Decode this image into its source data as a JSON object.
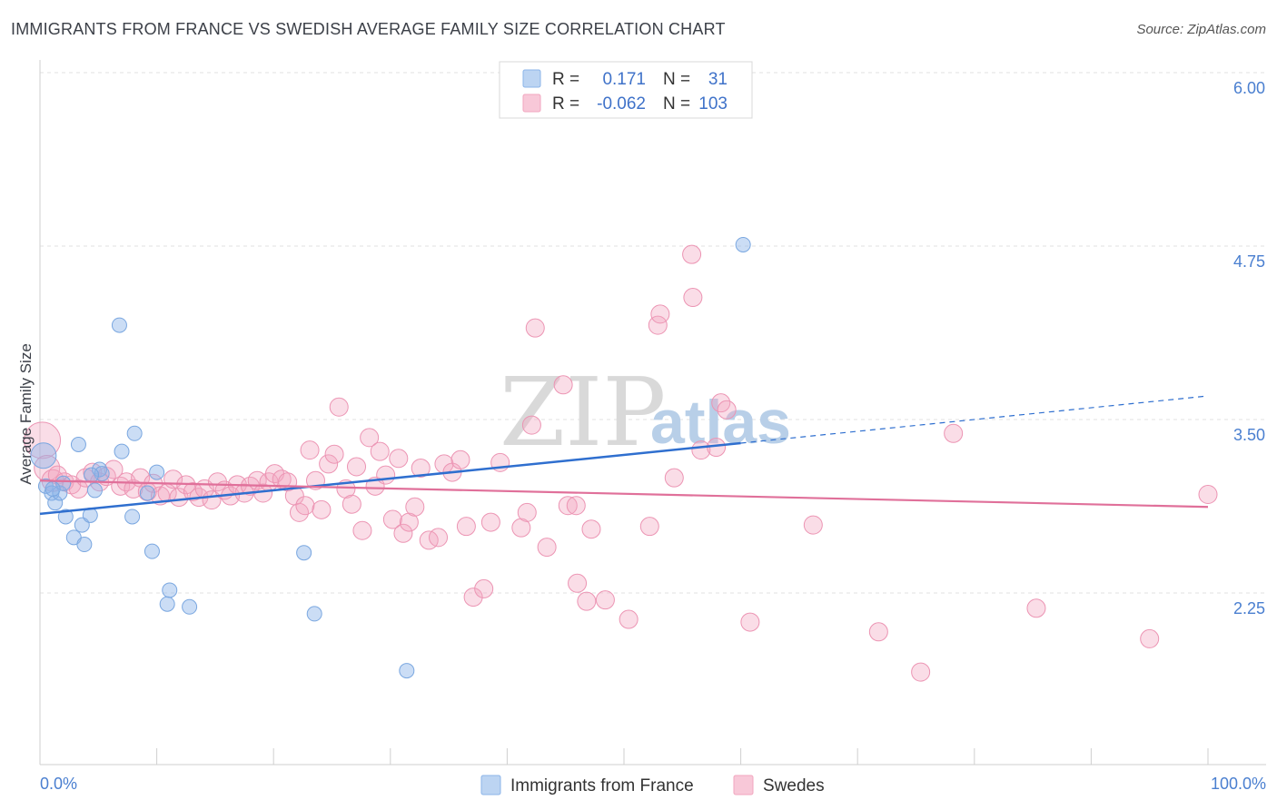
{
  "header": {
    "title": "IMMIGRANTS FROM FRANCE VS SWEDISH AVERAGE FAMILY SIZE CORRELATION CHART",
    "source": "Source: ZipAtlas.com"
  },
  "watermark": {
    "zip": "ZIP",
    "atlas": "atlas"
  },
  "legend": {
    "rows": [
      {
        "r_label": "R =",
        "r_value": "0.171",
        "n_label": "N =",
        "n_value": "31"
      },
      {
        "r_label": "R =",
        "r_value": "-0.062",
        "n_label": "N =",
        "n_value": "103"
      }
    ]
  },
  "bottom_legend": [
    "Immigrants from France",
    "Swedes"
  ],
  "chart_data": {
    "type": "scatter",
    "title": "IMMIGRANTS FROM FRANCE VS SWEDISH AVERAGE FAMILY SIZE CORRELATION CHART",
    "ylabel": "Average Family Size",
    "xlabel": "",
    "x_tick_labels": [
      "0.0%",
      "100.0%"
    ],
    "y_tick_labels": [
      "6.00",
      "4.75",
      "3.50",
      "2.25"
    ],
    "y_ticks": [
      6.0,
      4.75,
      3.5,
      2.25
    ],
    "xlim": [
      0,
      100
    ],
    "ylim": [
      1.0,
      6.15
    ],
    "grid": true,
    "legend_placement": "top-center",
    "colors": {
      "france": "#8bb4e8",
      "france_line": "#2f6fcf",
      "swedes": "#f2a6bf",
      "swedes_line": "#e0709a",
      "tick": "#4a7fd0"
    },
    "series": [
      {
        "name": "Immigrants from France",
        "color": "#8bb4e8",
        "trend": {
          "x0": 0,
          "y0": 2.82,
          "x1": 60,
          "y1": 3.33,
          "dashed_to_x": 100,
          "dashed_to_y": 3.67
        },
        "points": [
          [
            0.3,
            3.24,
            14
          ],
          [
            0.5,
            3.02,
            8
          ],
          [
            1,
            2.97,
            8
          ],
          [
            1.3,
            2.9,
            8
          ],
          [
            1.7,
            2.97,
            8
          ],
          [
            2,
            3.04,
            8
          ],
          [
            2.2,
            2.8,
            8
          ],
          [
            1.1,
            3.0,
            8
          ],
          [
            3.3,
            3.32,
            8
          ],
          [
            2.9,
            2.65,
            8
          ],
          [
            3.6,
            2.74,
            8
          ],
          [
            3.8,
            2.6,
            8
          ],
          [
            4.3,
            2.81,
            8
          ],
          [
            4.7,
            2.99,
            8
          ],
          [
            5.1,
            3.14,
            8
          ],
          [
            5.3,
            3.11,
            8
          ],
          [
            7,
            3.27,
            8
          ],
          [
            8.1,
            3.4,
            8
          ],
          [
            6.8,
            4.18,
            8
          ],
          [
            7.9,
            2.8,
            8
          ],
          [
            9.2,
            2.97,
            8
          ],
          [
            10,
            3.12,
            8
          ],
          [
            9.6,
            2.55,
            8
          ],
          [
            11.1,
            2.27,
            8
          ],
          [
            10.9,
            2.17,
            8
          ],
          [
            12.8,
            2.15,
            8
          ],
          [
            22.6,
            2.54,
            8
          ],
          [
            23.5,
            2.1,
            8
          ],
          [
            31.4,
            1.69,
            8
          ],
          [
            60.2,
            4.76,
            8
          ],
          [
            4.4,
            3.1,
            8
          ]
        ]
      },
      {
        "name": "Swedes",
        "color": "#f2a6bf",
        "trend": {
          "x0": 0,
          "y0": 3.06,
          "x1": 100,
          "y1": 2.87
        },
        "points": [
          [
            0.2,
            3.35,
            20
          ],
          [
            0.6,
            3.15,
            14
          ],
          [
            1.1,
            3.06,
            12
          ],
          [
            1.5,
            3.1,
            10
          ],
          [
            2.1,
            3.05,
            10
          ],
          [
            2.7,
            3.03,
            10
          ],
          [
            3.3,
            3.0,
            10
          ],
          [
            3.9,
            3.08,
            10
          ],
          [
            4.5,
            3.12,
            10
          ],
          [
            5.1,
            3.05,
            10
          ],
          [
            5.7,
            3.09,
            10
          ],
          [
            6.3,
            3.14,
            10
          ],
          [
            6.9,
            3.02,
            10
          ],
          [
            7.4,
            3.05,
            10
          ],
          [
            8.0,
            3.0,
            10
          ],
          [
            8.6,
            3.08,
            10
          ],
          [
            9.2,
            2.98,
            10
          ],
          [
            9.7,
            3.04,
            10
          ],
          [
            10.3,
            2.95,
            10
          ],
          [
            10.9,
            2.97,
            10
          ],
          [
            11.4,
            3.07,
            10
          ],
          [
            11.9,
            2.94,
            10
          ],
          [
            12.5,
            3.03,
            10
          ],
          [
            13.1,
            2.98,
            10
          ],
          [
            13.6,
            2.94,
            10
          ],
          [
            14.1,
            3.0,
            10
          ],
          [
            14.7,
            2.92,
            10
          ],
          [
            15.2,
            3.05,
            10
          ],
          [
            15.8,
            2.99,
            10
          ],
          [
            16.3,
            2.95,
            10
          ],
          [
            16.9,
            3.03,
            10
          ],
          [
            17.5,
            2.97,
            10
          ],
          [
            18.0,
            3.02,
            10
          ],
          [
            18.6,
            3.06,
            10
          ],
          [
            19.1,
            2.97,
            10
          ],
          [
            19.6,
            3.05,
            10
          ],
          [
            20.1,
            3.11,
            10
          ],
          [
            20.7,
            3.07,
            10
          ],
          [
            21.2,
            3.05,
            10
          ],
          [
            21.8,
            2.95,
            10
          ],
          [
            22.2,
            2.83,
            10
          ],
          [
            22.7,
            2.88,
            10
          ],
          [
            23.1,
            3.28,
            10
          ],
          [
            23.6,
            3.06,
            10
          ],
          [
            24.1,
            2.85,
            10
          ],
          [
            24.7,
            3.18,
            10
          ],
          [
            25.2,
            3.25,
            10
          ],
          [
            25.6,
            3.59,
            10
          ],
          [
            26.2,
            3.0,
            10
          ],
          [
            26.7,
            2.89,
            10
          ],
          [
            27.1,
            3.16,
            10
          ],
          [
            27.6,
            2.7,
            10
          ],
          [
            28.2,
            3.37,
            10
          ],
          [
            28.7,
            3.02,
            10
          ],
          [
            29.1,
            3.27,
            10
          ],
          [
            29.6,
            3.1,
            10
          ],
          [
            30.2,
            2.78,
            10
          ],
          [
            30.7,
            3.22,
            10
          ],
          [
            31.1,
            2.68,
            10
          ],
          [
            31.6,
            2.76,
            10
          ],
          [
            32.1,
            2.87,
            10
          ],
          [
            32.6,
            3.15,
            10
          ],
          [
            33.3,
            2.63,
            10
          ],
          [
            34.1,
            2.65,
            10
          ],
          [
            34.6,
            3.18,
            10
          ],
          [
            35.3,
            3.12,
            10
          ],
          [
            36.0,
            3.21,
            10
          ],
          [
            36.5,
            2.73,
            10
          ],
          [
            37.1,
            2.22,
            10
          ],
          [
            38.0,
            2.28,
            10
          ],
          [
            38.6,
            2.76,
            10
          ],
          [
            39.4,
            3.19,
            10
          ],
          [
            41.2,
            2.72,
            10
          ],
          [
            41.7,
            2.83,
            10
          ],
          [
            42.1,
            3.46,
            10
          ],
          [
            42.4,
            4.16,
            10
          ],
          [
            43.4,
            2.58,
            10
          ],
          [
            44.8,
            3.75,
            10
          ],
          [
            45.2,
            2.88,
            10
          ],
          [
            45.9,
            2.88,
            10
          ],
          [
            46.0,
            2.32,
            10
          ],
          [
            46.8,
            2.19,
            10
          ],
          [
            47.2,
            2.71,
            10
          ],
          [
            48.4,
            2.2,
            10
          ],
          [
            50.4,
            2.06,
            10
          ],
          [
            52.2,
            2.73,
            10
          ],
          [
            52.9,
            4.18,
            10
          ],
          [
            53.1,
            4.26,
            10
          ],
          [
            54.3,
            3.08,
            10
          ],
          [
            55.8,
            4.69,
            10
          ],
          [
            55.9,
            4.38,
            10
          ],
          [
            56.6,
            3.28,
            10
          ],
          [
            57.9,
            3.3,
            10
          ],
          [
            58.3,
            3.62,
            10
          ],
          [
            58.8,
            3.57,
            10
          ],
          [
            60.8,
            2.04,
            10
          ],
          [
            66.2,
            2.74,
            10
          ],
          [
            71.8,
            1.97,
            10
          ],
          [
            75.4,
            1.68,
            10
          ],
          [
            78.2,
            3.4,
            10
          ],
          [
            85.3,
            2.14,
            10
          ],
          [
            95.0,
            1.92,
            10
          ],
          [
            100,
            2.96,
            10
          ]
        ]
      }
    ]
  }
}
